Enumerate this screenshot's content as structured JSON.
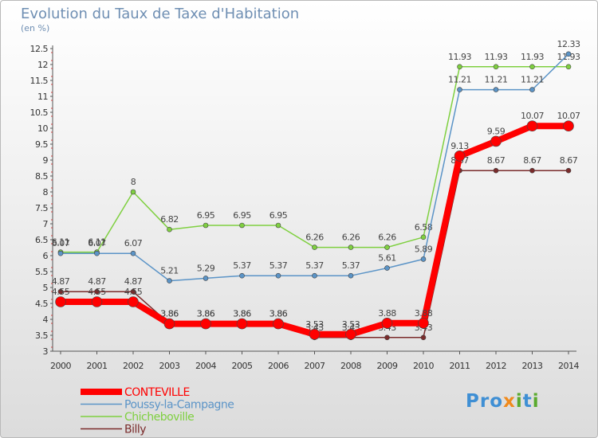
{
  "header": {
    "title": "Evolution du Taux de Taxe d'Habitation",
    "subtitle": "(en %)"
  },
  "logo": {
    "text": "Proxiti"
  },
  "chart_data": {
    "type": "line",
    "title": "Evolution du Taux de Taxe d'Habitation",
    "ylabel": "(en %)",
    "xlabel": "",
    "x": [
      "2000",
      "2001",
      "2002",
      "2003",
      "2004",
      "2005",
      "2006",
      "2007",
      "2008",
      "2009",
      "2010",
      "2011",
      "2012",
      "2013",
      "2014"
    ],
    "ylim": [
      3,
      12.5
    ],
    "yticks": [
      "3",
      "3.5",
      "4",
      "4.5",
      "5",
      "5.5",
      "6",
      "6.5",
      "7",
      "7.5",
      "8",
      "8.5",
      "9",
      "9.5",
      "10",
      "10.5",
      "11",
      "11.5",
      "12",
      "12.5"
    ],
    "grid": false,
    "legend": "bottom-left",
    "series": [
      {
        "name": "CONTEVILLE",
        "color": "#ff0000",
        "values": [
          4.55,
          4.55,
          4.55,
          3.86,
          3.86,
          3.86,
          3.86,
          3.53,
          3.53,
          3.88,
          3.88,
          9.13,
          9.59,
          10.07,
          10.07
        ],
        "labels": [
          "4.55",
          "4.55",
          "4.55",
          "3.86",
          "3.86",
          "3.86",
          "3.86",
          "3.53",
          "3.53",
          "3.88",
          "3.88",
          "9.13",
          "9.59",
          "10.07",
          "10.07"
        ]
      },
      {
        "name": "Poussy-la-Campagne",
        "color": "#5b94c7",
        "values": [
          6.07,
          6.07,
          6.07,
          5.21,
          5.29,
          5.37,
          5.37,
          5.37,
          5.37,
          5.61,
          5.89,
          11.21,
          11.21,
          11.21,
          12.33
        ],
        "labels": [
          "6.07",
          "6.07",
          "6.07",
          "5.21",
          "5.29",
          "5.37",
          "5.37",
          "5.37",
          "5.37",
          "5.61",
          "5.89",
          "11.21",
          "11.21",
          "11.21",
          "12.33"
        ]
      },
      {
        "name": "Chicheboville",
        "color": "#7fd040",
        "values": [
          6.11,
          6.11,
          8,
          6.82,
          6.95,
          6.95,
          6.95,
          6.26,
          6.26,
          6.26,
          6.58,
          11.93,
          11.93,
          11.93,
          11.93
        ],
        "labels": [
          "6.11",
          "6.11",
          "8",
          "6.82",
          "6.95",
          "6.95",
          "6.95",
          "6.26",
          "6.26",
          "6.26",
          "6.58",
          "11.93",
          "11.93",
          "11.93",
          "11.93"
        ]
      },
      {
        "name": "Billy",
        "color": "#7a2b2b",
        "values": [
          4.87,
          4.87,
          4.87,
          3.86,
          3.86,
          3.86,
          3.86,
          3.43,
          3.43,
          3.43,
          3.43,
          8.67,
          8.67,
          8.67,
          8.67
        ],
        "labels": [
          "4.87",
          "4.87",
          "4.87",
          "3.86",
          "3.86",
          "3.86",
          "3.86",
          "3.43",
          "3.43",
          "3.43",
          "3.43",
          "8.67",
          "8.67",
          "8.67",
          "8.67"
        ]
      }
    ]
  }
}
